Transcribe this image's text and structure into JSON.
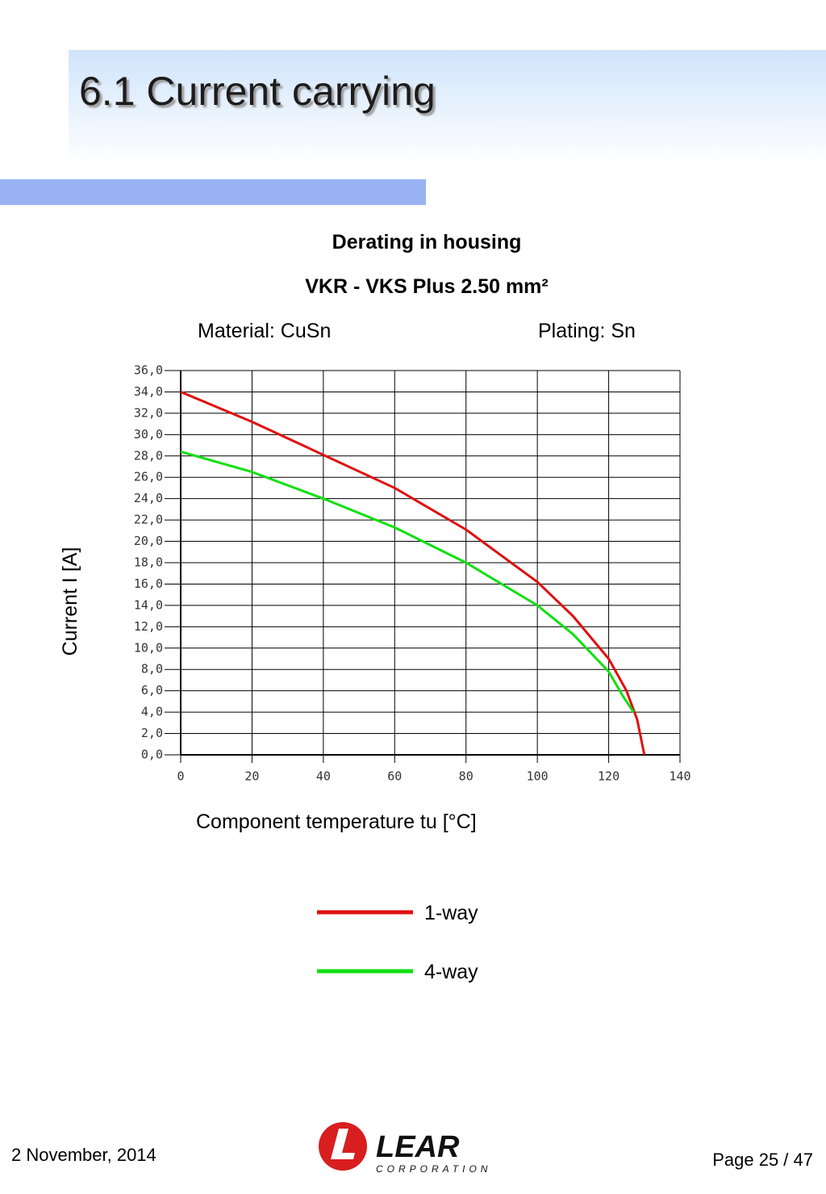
{
  "header": {
    "title": "6.1 Current carrying"
  },
  "chart_data": {
    "type": "line",
    "title": "Derating in housing",
    "subtitle": "VKR - VKS  Plus 2.50 mm²",
    "annotations": [
      "Material: CuSn",
      "Plating: Sn"
    ],
    "x_label": "Component temperature tu [°C]",
    "y_label": "Current I [A]",
    "xlim": [
      0,
      140
    ],
    "xticks": [
      0,
      20,
      40,
      60,
      80,
      100,
      120,
      140
    ],
    "ylim": [
      0,
      36
    ],
    "yticks": [
      {
        "value": 0,
        "label": "0,0"
      },
      {
        "value": 2,
        "label": "2,0"
      },
      {
        "value": 4,
        "label": "4,0"
      },
      {
        "value": 6,
        "label": "6,0"
      },
      {
        "value": 8,
        "label": "8,0"
      },
      {
        "value": 10,
        "label": "10,0"
      },
      {
        "value": 12,
        "label": "12,0"
      },
      {
        "value": 14,
        "label": "14,0"
      },
      {
        "value": 16,
        "label": "16,0"
      },
      {
        "value": 18,
        "label": "18,0"
      },
      {
        "value": 20,
        "label": "20,0"
      },
      {
        "value": 22,
        "label": "22,0"
      },
      {
        "value": 24,
        "label": "24,0"
      },
      {
        "value": 26,
        "label": "26,0"
      },
      {
        "value": 28,
        "label": "28,0"
      },
      {
        "value": 30,
        "label": "30,0"
      },
      {
        "value": 32,
        "label": "32,0"
      },
      {
        "value": 34,
        "label": "34,0"
      },
      {
        "value": 36,
        "label": "36,0"
      }
    ],
    "grid": true,
    "series": [
      {
        "name": "1-way",
        "color": "#e01010",
        "x": [
          0,
          20,
          40,
          60,
          80,
          100,
          110,
          120,
          125,
          128,
          130
        ],
        "values": [
          34.0,
          31.2,
          28.1,
          25.0,
          21.1,
          16.2,
          13.0,
          9.0,
          6.0,
          3.3,
          0
        ]
      },
      {
        "name": "4-way",
        "color": "#10e010",
        "x": [
          0,
          20,
          40,
          60,
          80,
          100,
          110,
          120,
          124,
          127
        ],
        "values": [
          28.4,
          26.5,
          24.0,
          21.3,
          18.0,
          14.0,
          11.3,
          7.8,
          5.5,
          4.0
        ]
      }
    ]
  },
  "footer": {
    "date": "2 November, 2014",
    "logo": "LEAR",
    "logo_sub": "CORPORATION",
    "page": "Page 25 / 47"
  }
}
